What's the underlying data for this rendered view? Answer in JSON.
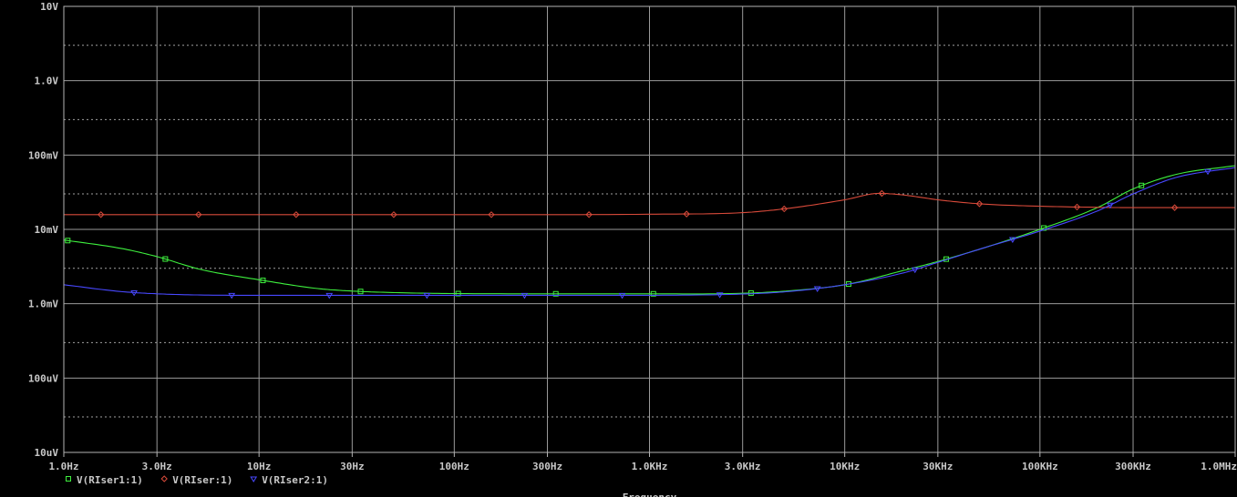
{
  "chart_data": {
    "type": "line",
    "x_scale": "log",
    "y_scale": "log",
    "xlabel": "Frequency",
    "xlim": [
      1,
      1000000
    ],
    "ylim": [
      1e-05,
      10
    ],
    "grid": true,
    "x_ticks": [
      {
        "value": 1,
        "label": "1.0Hz"
      },
      {
        "value": 3,
        "label": "3.0Hz"
      },
      {
        "value": 10,
        "label": "10Hz"
      },
      {
        "value": 30,
        "label": "30Hz"
      },
      {
        "value": 100,
        "label": "100Hz"
      },
      {
        "value": 300,
        "label": "300Hz"
      },
      {
        "value": 1000,
        "label": "1.0KHz"
      },
      {
        "value": 3000,
        "label": "3.0KHz"
      },
      {
        "value": 10000,
        "label": "10KHz"
      },
      {
        "value": 30000,
        "label": "30KHz"
      },
      {
        "value": 100000,
        "label": "100KHz"
      },
      {
        "value": 300000,
        "label": "300KHz"
      },
      {
        "value": 1000000,
        "label": "1.0MHz"
      }
    ],
    "y_ticks": [
      {
        "value": 10,
        "label": "10V"
      },
      {
        "value": 1,
        "label": "1.0V"
      },
      {
        "value": 0.1,
        "label": "100mV"
      },
      {
        "value": 0.01,
        "label": "10mV"
      },
      {
        "value": 0.001,
        "label": "1.0mV"
      },
      {
        "value": 0.0001,
        "label": "100uV"
      },
      {
        "value": 1e-05,
        "label": "10uV"
      }
    ],
    "series": [
      {
        "name": "V(RIser1:1)",
        "color": "#3ef03e",
        "marker": "square",
        "x": [
          1,
          2,
          3,
          5,
          10,
          20,
          30,
          50,
          100,
          300,
          1000,
          3000,
          5000,
          10000,
          20000,
          30000,
          50000,
          100000,
          200000,
          300000,
          500000,
          1000000
        ],
        "y": [
          0.0072,
          0.0055,
          0.0043,
          0.0029,
          0.0021,
          0.0016,
          0.00148,
          0.00141,
          0.00137,
          0.00136,
          0.00136,
          0.00138,
          0.00148,
          0.0018,
          0.0028,
          0.0037,
          0.0055,
          0.01,
          0.02,
          0.035,
          0.055,
          0.072
        ]
      },
      {
        "name": "V(RIser:1)",
        "color": "#d84a3a",
        "marker": "diamond",
        "x": [
          1,
          10,
          100,
          1000,
          3000,
          5000,
          10000,
          15000,
          20000,
          30000,
          50000,
          100000,
          200000,
          300000,
          1000000
        ],
        "y": [
          0.0158,
          0.0158,
          0.0158,
          0.016,
          0.0168,
          0.019,
          0.025,
          0.0305,
          0.029,
          0.025,
          0.022,
          0.0205,
          0.0198,
          0.0196,
          0.0196
        ]
      },
      {
        "name": "V(RIser2:1)",
        "color": "#4848ff",
        "marker": "triangle",
        "x": [
          1,
          2,
          3,
          5,
          10,
          30,
          100,
          1000,
          3000,
          5000,
          10000,
          20000,
          30000,
          50000,
          100000,
          200000,
          300000,
          500000,
          1000000
        ],
        "y": [
          0.0018,
          0.00145,
          0.00136,
          0.00131,
          0.0013,
          0.0013,
          0.0013,
          0.0013,
          0.00135,
          0.00145,
          0.0018,
          0.0026,
          0.0036,
          0.0055,
          0.0095,
          0.018,
          0.03,
          0.05,
          0.068
        ]
      }
    ]
  }
}
